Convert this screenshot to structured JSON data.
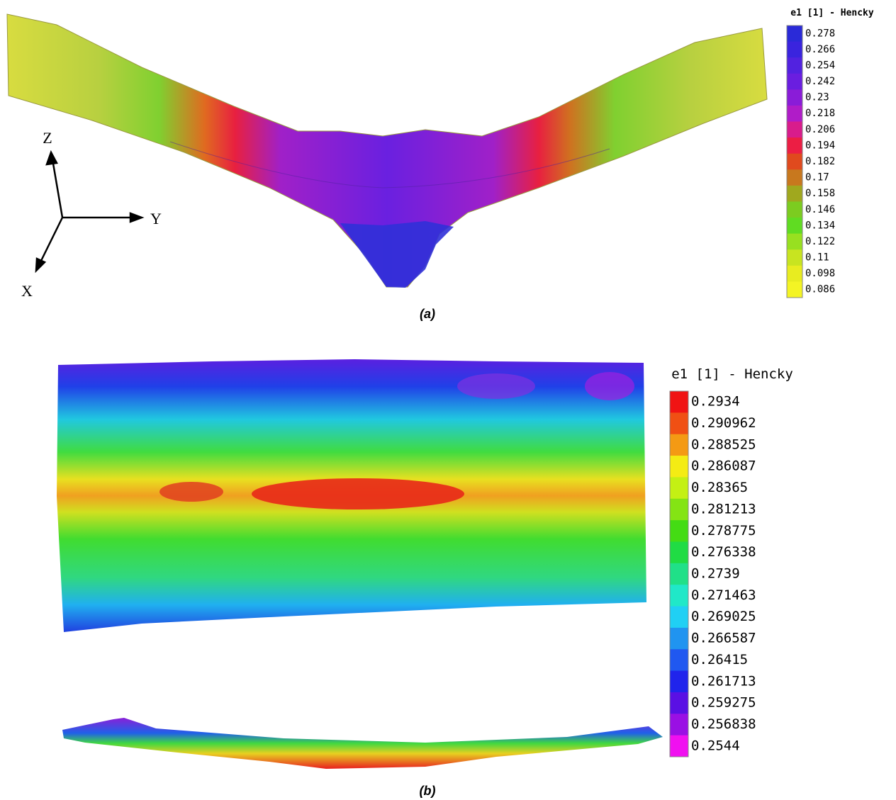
{
  "panel_a": {
    "axes": {
      "z": "Z",
      "y": "Y",
      "x": "X"
    },
    "legend": {
      "title": "e1 [1] - Hencky",
      "labels": [
        "0.278",
        "0.266",
        "0.254",
        "0.242",
        "0.23",
        "0.218",
        "0.206",
        "0.194",
        "0.182",
        "0.17",
        "0.158",
        "0.146",
        "0.134",
        "0.122",
        "0.11",
        "0.098",
        "0.086"
      ],
      "colors": [
        "#2a2ad8",
        "#3a24de",
        "#5222e0",
        "#6a1ee0",
        "#8a1cd8",
        "#b01cc8",
        "#d81c8c",
        "#ec1e44",
        "#e04a1e",
        "#c8781e",
        "#a0a81e",
        "#7ccc20",
        "#60dc22",
        "#98e020",
        "#c8e420",
        "#e8ec20",
        "#f4f424"
      ]
    },
    "caption": "(a)"
  },
  "panel_b": {
    "legend": {
      "title": "e1 [1] - Hencky",
      "labels": [
        "0.2934",
        "0.290962",
        "0.288525",
        "0.286087",
        "0.28365",
        "0.281213",
        "0.278775",
        "0.276338",
        "0.2739",
        "0.271463",
        "0.269025",
        "0.266587",
        "0.26415",
        "0.261713",
        "0.259275",
        "0.256838",
        "0.2544"
      ],
      "colors": [
        "#f01414",
        "#f05014",
        "#f49a14",
        "#f4ec14",
        "#c4f014",
        "#84e414",
        "#44dc14",
        "#20dc44",
        "#20e088",
        "#20e8c8",
        "#20d0f4",
        "#2094f0",
        "#2058f0",
        "#2024ec",
        "#5a10e4",
        "#9a10e4",
        "#f010f0"
      ]
    },
    "caption": "(b)"
  }
}
